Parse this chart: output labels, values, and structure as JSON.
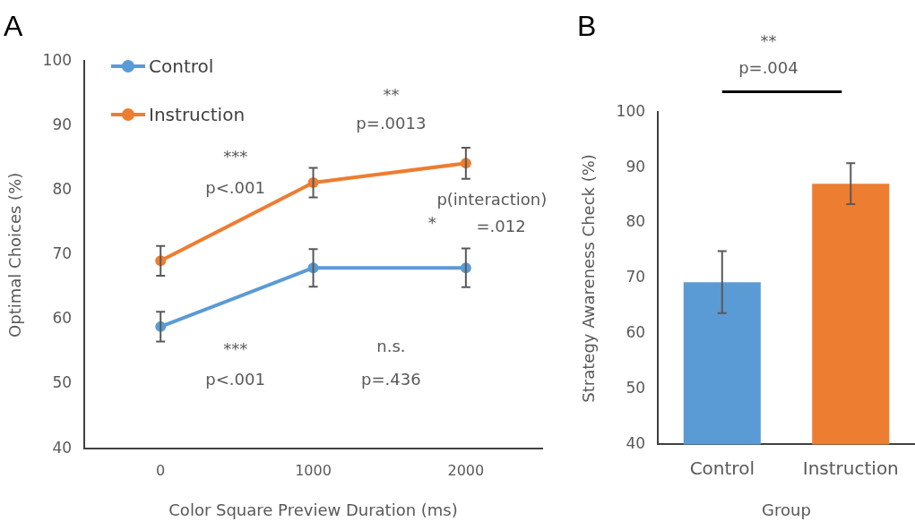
{
  "chart_data": [
    {
      "type": "line",
      "title": "A",
      "xlabel": "Color Square Preview Duration (ms)",
      "ylabel": "Optimal Choices (%)",
      "categories": [
        "0",
        "1000",
        "2000"
      ],
      "series": [
        {
          "name": "Control",
          "color": "#5b9bd5",
          "values": [
            58.9,
            68.0,
            68.0
          ],
          "errors": [
            2.3,
            2.9,
            3.0
          ]
        },
        {
          "name": "Instruction",
          "color": "#ed7d31",
          "values": [
            69.1,
            81.2,
            84.2
          ],
          "errors": [
            2.3,
            2.3,
            2.4
          ]
        }
      ],
      "ylim": [
        40,
        100
      ],
      "yticks": [
        40,
        50,
        60,
        70,
        80,
        90,
        100
      ],
      "grid": false,
      "legend": "top left",
      "marker": "circle",
      "line_style": "solid",
      "annotations": [
        "***",
        "p<.001",
        "**",
        "p=.0013",
        "*",
        "p(interaction)",
        "=.012",
        "***",
        "p<.001",
        "n.s.",
        "p=.436"
      ]
    },
    {
      "type": "bar",
      "title": "B",
      "xlabel": "Group",
      "ylabel": "Strategy Awareness Check (%)",
      "categories": [
        "Control",
        "Instruction"
      ],
      "values": [
        69.3,
        87.1
      ],
      "colors": [
        "#5b9bd5",
        "#ed7d31"
      ],
      "errors": [
        5.6,
        3.7
      ],
      "ylim": [
        40,
        100
      ],
      "yticks": [
        40,
        50,
        60,
        70,
        80,
        90,
        100
      ],
      "grid": false,
      "annotations": [
        "**",
        "p=.004"
      ]
    }
  ]
}
